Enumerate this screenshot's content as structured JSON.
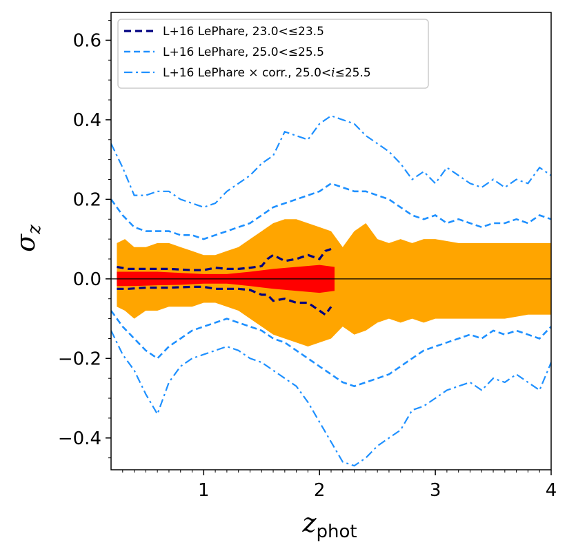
{
  "chart_data": {
    "type": "area",
    "xlabel_main": "z",
    "xlabel_sub": "phot",
    "ylabel_main": "σ",
    "ylabel_sub": "z",
    "xlim": [
      0.2,
      4.0
    ],
    "ylim": [
      -0.48,
      0.67
    ],
    "xticks": [
      1,
      2,
      3,
      4
    ],
    "xtick_labels": [
      "1",
      "2",
      "3",
      "4"
    ],
    "yticks": [
      -0.4,
      -0.2,
      0.0,
      0.2,
      0.4,
      0.6
    ],
    "ytick_labels": [
      "−0.4",
      "−0.2",
      "0.0",
      "0.2",
      "0.4",
      "0.6"
    ],
    "grid": false,
    "legend": {
      "position": "top-left",
      "entries": [
        {
          "label_parts": [
            {
              "text": "L+16 LePhare, 23.0<≤23.5",
              "italic": false
            }
          ],
          "color": "#000080",
          "dash": "dashed-bold"
        },
        {
          "label_parts": [
            {
              "text": "L+16 LePhare, 25.0<≤25.5",
              "italic": false
            }
          ],
          "color": "#1f8fff",
          "dash": "dashed"
        },
        {
          "label_parts": [
            {
              "text": "L+16 LePhare × corr., 25.0<",
              "italic": false
            },
            {
              "text": "i",
              "italic": true
            },
            {
              "text": "≤25.5",
              "italic": false
            }
          ],
          "color": "#1e90ff",
          "dash": "dashdot"
        }
      ]
    },
    "colors": {
      "orange_band": "#ffa500",
      "red_band": "#ff0000",
      "navy": "#000080",
      "blue": "#1e90ff"
    },
    "orange_band": {
      "x": [
        0.25,
        0.32,
        0.4,
        0.5,
        0.6,
        0.7,
        0.8,
        0.9,
        1.0,
        1.1,
        1.2,
        1.3,
        1.4,
        1.5,
        1.6,
        1.7,
        1.8,
        1.9,
        2.0,
        2.1,
        2.2,
        2.3,
        2.4,
        2.5,
        2.6,
        2.7,
        2.8,
        2.9,
        3.0,
        3.2,
        3.4,
        3.6,
        3.8,
        4.0
      ],
      "upper": [
        0.09,
        0.1,
        0.08,
        0.08,
        0.09,
        0.09,
        0.08,
        0.07,
        0.06,
        0.06,
        0.07,
        0.08,
        0.1,
        0.12,
        0.14,
        0.15,
        0.15,
        0.14,
        0.13,
        0.12,
        0.08,
        0.12,
        0.14,
        0.1,
        0.09,
        0.1,
        0.09,
        0.1,
        0.1,
        0.09,
        0.09,
        0.09,
        0.09,
        0.09
      ],
      "lower": [
        -0.07,
        -0.08,
        -0.1,
        -0.08,
        -0.08,
        -0.07,
        -0.07,
        -0.07,
        -0.06,
        -0.06,
        -0.07,
        -0.08,
        -0.1,
        -0.12,
        -0.14,
        -0.15,
        -0.16,
        -0.17,
        -0.16,
        -0.15,
        -0.12,
        -0.14,
        -0.13,
        -0.11,
        -0.1,
        -0.11,
        -0.1,
        -0.11,
        -0.1,
        -0.1,
        -0.1,
        -0.1,
        -0.09,
        -0.09
      ]
    },
    "red_band": {
      "x": [
        0.25,
        0.4,
        0.6,
        0.8,
        1.0,
        1.2,
        1.4,
        1.6,
        1.8,
        2.0,
        2.13
      ],
      "upper": [
        0.018,
        0.018,
        0.018,
        0.015,
        0.012,
        0.012,
        0.018,
        0.025,
        0.03,
        0.035,
        0.03
      ],
      "lower": [
        -0.018,
        -0.018,
        -0.016,
        -0.015,
        -0.012,
        -0.012,
        -0.018,
        -0.025,
        -0.03,
        -0.035,
        -0.03
      ]
    },
    "series": [
      {
        "label_index": 0,
        "style": "navy-dashed",
        "x": [
          0.25,
          0.35,
          0.5,
          0.7,
          0.9,
          1.0,
          1.1,
          1.2,
          1.3,
          1.4,
          1.5,
          1.55,
          1.6,
          1.7,
          1.8,
          1.9,
          2.0,
          2.05,
          2.1
        ],
        "upper": [
          0.03,
          0.025,
          0.025,
          0.025,
          0.022,
          0.022,
          0.028,
          0.025,
          0.025,
          0.028,
          0.032,
          0.05,
          0.06,
          0.045,
          0.05,
          0.06,
          0.05,
          0.07,
          0.075
        ],
        "lower": [
          -0.025,
          -0.025,
          -0.022,
          -0.022,
          -0.02,
          -0.02,
          -0.025,
          -0.025,
          -0.025,
          -0.028,
          -0.04,
          -0.04,
          -0.055,
          -0.05,
          -0.06,
          -0.06,
          -0.08,
          -0.09,
          -0.07
        ]
      },
      {
        "label_index": 1,
        "style": "blue-dashed",
        "x": [
          0.2,
          0.3,
          0.4,
          0.5,
          0.6,
          0.7,
          0.8,
          0.9,
          1.0,
          1.1,
          1.2,
          1.3,
          1.4,
          1.5,
          1.6,
          1.7,
          1.8,
          1.9,
          2.0,
          2.1,
          2.2,
          2.3,
          2.4,
          2.5,
          2.6,
          2.7,
          2.8,
          2.9,
          3.0,
          3.1,
          3.2,
          3.3,
          3.4,
          3.5,
          3.6,
          3.7,
          3.8,
          3.9,
          4.0
        ],
        "upper": [
          0.2,
          0.16,
          0.13,
          0.12,
          0.12,
          0.12,
          0.11,
          0.11,
          0.1,
          0.11,
          0.12,
          0.13,
          0.14,
          0.16,
          0.18,
          0.19,
          0.2,
          0.21,
          0.22,
          0.24,
          0.23,
          0.22,
          0.22,
          0.21,
          0.2,
          0.18,
          0.16,
          0.15,
          0.16,
          0.14,
          0.15,
          0.14,
          0.13,
          0.14,
          0.14,
          0.15,
          0.14,
          0.16,
          0.15
        ],
        "lower": [
          -0.08,
          -0.12,
          -0.15,
          -0.18,
          -0.2,
          -0.17,
          -0.15,
          -0.13,
          -0.12,
          -0.11,
          -0.1,
          -0.11,
          -0.12,
          -0.13,
          -0.15,
          -0.16,
          -0.18,
          -0.2,
          -0.22,
          -0.24,
          -0.26,
          -0.27,
          -0.26,
          -0.25,
          -0.24,
          -0.22,
          -0.2,
          -0.18,
          -0.17,
          -0.16,
          -0.15,
          -0.14,
          -0.15,
          -0.13,
          -0.14,
          -0.13,
          -0.14,
          -0.15,
          -0.12
        ]
      },
      {
        "label_index": 2,
        "style": "blue-dashdot",
        "x": [
          0.2,
          0.3,
          0.4,
          0.5,
          0.6,
          0.7,
          0.8,
          0.9,
          1.0,
          1.1,
          1.2,
          1.3,
          1.4,
          1.5,
          1.6,
          1.7,
          1.8,
          1.9,
          2.0,
          2.1,
          2.2,
          2.3,
          2.4,
          2.5,
          2.6,
          2.7,
          2.8,
          2.9,
          3.0,
          3.1,
          3.2,
          3.3,
          3.4,
          3.5,
          3.6,
          3.7,
          3.8,
          3.9,
          4.0
        ],
        "upper": [
          0.34,
          0.28,
          0.21,
          0.21,
          0.22,
          0.22,
          0.2,
          0.19,
          0.18,
          0.19,
          0.22,
          0.24,
          0.26,
          0.29,
          0.31,
          0.37,
          0.36,
          0.35,
          0.39,
          0.41,
          0.4,
          0.39,
          0.36,
          0.34,
          0.32,
          0.29,
          0.25,
          0.27,
          0.24,
          0.28,
          0.26,
          0.24,
          0.23,
          0.25,
          0.23,
          0.25,
          0.24,
          0.28,
          0.26
        ],
        "lower": [
          -0.13,
          -0.19,
          -0.23,
          -0.29,
          -0.34,
          -0.26,
          -0.22,
          -0.2,
          -0.19,
          -0.18,
          -0.17,
          -0.18,
          -0.2,
          -0.21,
          -0.23,
          -0.25,
          -0.27,
          -0.31,
          -0.36,
          -0.41,
          -0.46,
          -0.47,
          -0.45,
          -0.42,
          -0.4,
          -0.38,
          -0.33,
          -0.32,
          -0.3,
          -0.28,
          -0.27,
          -0.26,
          -0.28,
          -0.25,
          -0.26,
          -0.24,
          -0.26,
          -0.28,
          -0.21
        ]
      }
    ]
  }
}
